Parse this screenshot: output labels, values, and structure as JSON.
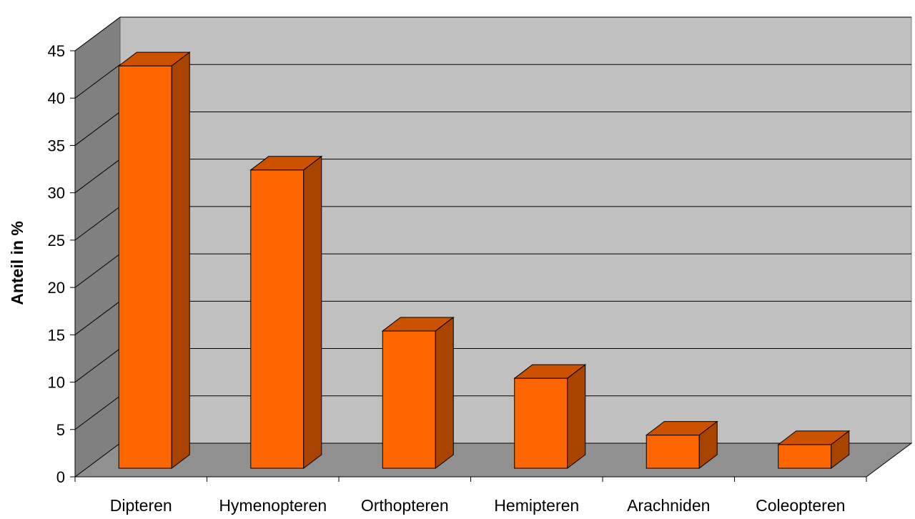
{
  "chart_data": {
    "type": "bar",
    "title": "",
    "xlabel": "",
    "ylabel": "Anteil in %",
    "categories": [
      "Dipteren",
      "Hymenopteren",
      "Orthopteren",
      "Hemipteren",
      "Arachniden",
      "Coleopteren"
    ],
    "values": [
      42.5,
      31.5,
      14.5,
      9.5,
      3.5,
      2.5
    ],
    "ylim": [
      0,
      45
    ],
    "yticks": [
      "0",
      "5",
      "10",
      "15",
      "20",
      "25",
      "30",
      "35",
      "40",
      "45"
    ],
    "grid": true,
    "legend": "none",
    "style": "3d"
  },
  "colors": {
    "bar_front": "#ff6600",
    "bar_top": "#cc5200",
    "bar_side": "#a84300",
    "back_wall": "#c0c0c0",
    "side_wall": "#808080",
    "floor": "#909090"
  }
}
